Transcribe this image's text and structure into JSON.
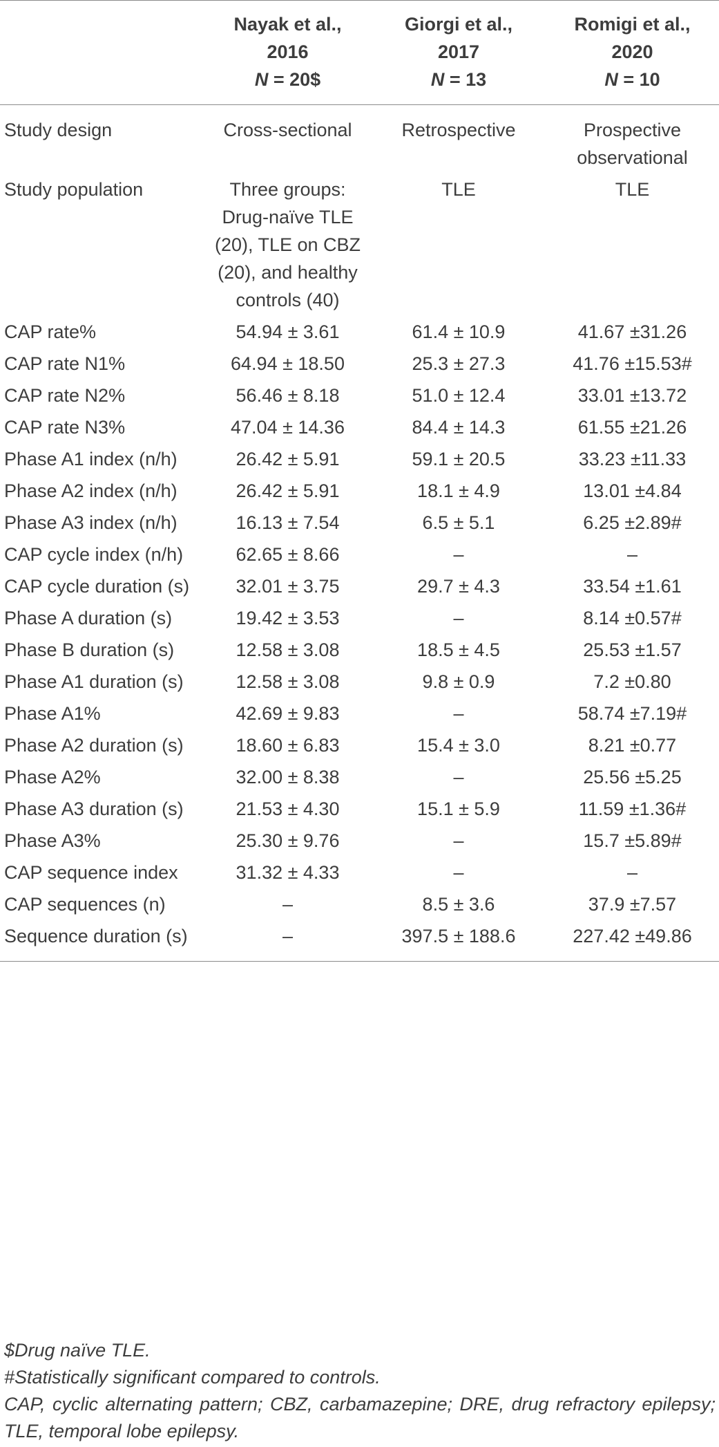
{
  "columns": [
    {
      "line1": "",
      "line2": "",
      "n_label": "",
      "n_value": ""
    },
    {
      "line1": "Nayak et al.,",
      "line2": "2016",
      "n_label": "N",
      "n_value": " = 20$"
    },
    {
      "line1": "Giorgi et al.,",
      "line2": "2017",
      "n_label": "N",
      "n_value": " = 13"
    },
    {
      "line1": "Romigi et al.,",
      "line2": "2020",
      "n_label": "N",
      "n_value": " = 10"
    }
  ],
  "rows": [
    {
      "label": "Study design",
      "values": [
        "Cross-sectional",
        "Retrospective",
        "Prospective observational"
      ]
    },
    {
      "label": "Study population",
      "values": [
        "Three groups: Drug-naïve TLE (20), TLE on CBZ (20), and healthy controls (40)",
        "TLE",
        "TLE"
      ]
    },
    {
      "label": "CAP rate%",
      "values": [
        "54.94 ± 3.61",
        "61.4 ± 10.9",
        "41.67 ±31.26"
      ]
    },
    {
      "label": "CAP rate N1%",
      "values": [
        "64.94 ± 18.50",
        "25.3 ± 27.3",
        "41.76 ±15.53#"
      ]
    },
    {
      "label": "CAP rate N2%",
      "values": [
        "56.46 ± 8.18",
        "51.0 ± 12.4",
        "33.01 ±13.72"
      ]
    },
    {
      "label": "CAP rate N3%",
      "values": [
        "47.04 ± 14.36",
        "84.4 ± 14.3",
        "61.55 ±21.26"
      ]
    },
    {
      "label": "Phase A1 index (n/h)",
      "values": [
        "26.42 ± 5.91",
        "59.1 ± 20.5",
        "33.23 ±11.33"
      ]
    },
    {
      "label": "Phase A2 index (n/h)",
      "values": [
        "26.42 ± 5.91",
        "18.1 ± 4.9",
        "13.01 ±4.84"
      ]
    },
    {
      "label": "Phase A3 index (n/h)",
      "values": [
        "16.13 ± 7.54",
        "6.5 ± 5.1",
        "6.25 ±2.89#"
      ]
    },
    {
      "label": "CAP cycle index (n/h)",
      "values": [
        "62.65 ± 8.66",
        "–",
        "–"
      ]
    },
    {
      "label": "CAP cycle duration (s)",
      "values": [
        "32.01 ± 3.75",
        "29.7 ± 4.3",
        "33.54 ±1.61"
      ]
    },
    {
      "label": "Phase A duration (s)",
      "values": [
        "19.42 ± 3.53",
        "–",
        "8.14 ±0.57#"
      ]
    },
    {
      "label": "Phase B duration (s)",
      "values": [
        "12.58 ± 3.08",
        "18.5 ± 4.5",
        "25.53 ±1.57"
      ]
    },
    {
      "label": "Phase A1 duration (s)",
      "values": [
        "12.58 ± 3.08",
        "9.8 ± 0.9",
        "7.2 ±0.80"
      ]
    },
    {
      "label": "Phase A1%",
      "values": [
        "42.69 ± 9.83",
        "–",
        "58.74 ±7.19#"
      ]
    },
    {
      "label": "Phase A2 duration (s)",
      "values": [
        "18.60 ± 6.83",
        "15.4 ± 3.0",
        "8.21 ±0.77"
      ]
    },
    {
      "label": "Phase A2%",
      "values": [
        "32.00 ± 8.38",
        "–",
        "25.56 ±5.25"
      ]
    },
    {
      "label": "Phase A3 duration (s)",
      "values": [
        "21.53 ± 4.30",
        "15.1 ± 5.9",
        "11.59 ±1.36#"
      ]
    },
    {
      "label": "Phase A3%",
      "values": [
        "25.30 ± 9.76",
        "–",
        "15.7 ±5.89#"
      ]
    },
    {
      "label": "CAP sequence index",
      "values": [
        "31.32 ± 4.33",
        "–",
        "–"
      ]
    },
    {
      "label": "CAP sequences (n)",
      "values": [
        "–",
        "8.5 ± 3.6",
        "37.9 ±7.57"
      ]
    },
    {
      "label": "Sequence duration (s)",
      "values": [
        "–",
        "397.5 ± 188.6",
        "227.42 ±49.86"
      ]
    }
  ],
  "footnotes": [
    "$Drug naïve TLE.",
    "#Statistically significant compared to controls.",
    "CAP, cyclic alternating pattern; CBZ, carbamazepine; DRE, drug refractory epilepsy; TLE, temporal lobe epilepsy."
  ]
}
